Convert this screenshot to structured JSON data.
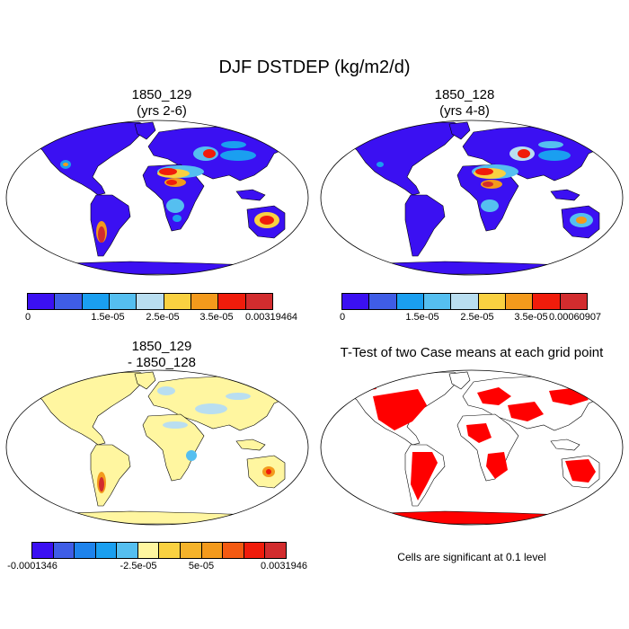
{
  "title": "DJF DSTDEP (kg/m2/d)",
  "panels": [
    {
      "title_line1": "1850_129",
      "title_line2": "(yrs 2-6)",
      "colorbar": {
        "colors": [
          "#3b10f2",
          "#3f5de6",
          "#1a9ff0",
          "#55bff0",
          "#b9def0",
          "#f9d141",
          "#f39a1c",
          "#f01c0b",
          "#d22c2e"
        ],
        "labels": [
          "0",
          "1.5e-05",
          "2.5e-05",
          "3.5e-05",
          "0.00319464"
        ]
      }
    },
    {
      "title_line1": "1850_128",
      "title_line2": "(yrs 4-8)",
      "colorbar": {
        "colors": [
          "#3b10f2",
          "#3f5de6",
          "#1a9ff0",
          "#55bff0",
          "#b9def0",
          "#f9d141",
          "#f39a1c",
          "#f01c0b",
          "#d22c2e"
        ],
        "labels": [
          "0",
          "1.5e-05",
          "2.5e-05",
          "3.5e-05",
          "0.00060907"
        ]
      }
    },
    {
      "title_line1": "1850_129",
      "title_line2": "- 1850_128",
      "colorbar": {
        "colors": [
          "#3b10f2",
          "#3f5de6",
          "#1e83ec",
          "#1a9ff0",
          "#55bff0",
          "#fff6a0",
          "#f9d141",
          "#f5b32a",
          "#f39a1c",
          "#f45a12",
          "#f01c0b",
          "#d22c2e"
        ],
        "labels": [
          "-0.0001346",
          "-2.5e-05",
          "5e-05",
          "0.0031946"
        ]
      }
    },
    {
      "title_line1": "T-Test of two Case means at each grid point",
      "note": "Cells are significant at 0.1 level"
    }
  ]
}
